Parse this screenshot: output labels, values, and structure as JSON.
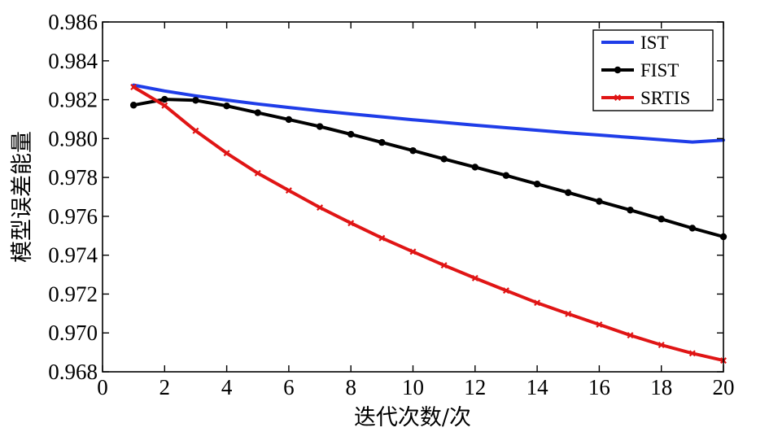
{
  "chart_data": {
    "type": "line",
    "xlabel": "迭代次数/次",
    "ylabel": "模型误差能量",
    "xlim": [
      0,
      20
    ],
    "ylim": [
      0.968,
      0.986
    ],
    "xticks": [
      0,
      2,
      4,
      6,
      8,
      10,
      12,
      14,
      16,
      18,
      20
    ],
    "yticks": [
      0.968,
      0.97,
      0.972,
      0.974,
      0.976,
      0.978,
      0.98,
      0.982,
      0.984,
      0.986
    ],
    "xtick_labels": [
      "0",
      "2",
      "4",
      "6",
      "8",
      "10",
      "12",
      "14",
      "16",
      "18",
      "20"
    ],
    "ytick_labels": [
      "0.968",
      "0.970",
      "0.972",
      "0.974",
      "0.976",
      "0.978",
      "0.980",
      "0.982",
      "0.984",
      "0.986"
    ],
    "grid": false,
    "legend_position": "top-right",
    "x": [
      1,
      2,
      3,
      4,
      5,
      6,
      7,
      8,
      9,
      10,
      11,
      12,
      13,
      14,
      15,
      16,
      17,
      18,
      19,
      20
    ],
    "series": [
      {
        "name": "IST",
        "color": "#1f3de8",
        "marker": "none",
        "values": [
          0.98275,
          0.98245,
          0.9822,
          0.98198,
          0.98178,
          0.9816,
          0.98143,
          0.98127,
          0.98112,
          0.98097,
          0.98083,
          0.98069,
          0.98056,
          0.98043,
          0.9803,
          0.98018,
          0.98006,
          0.97994,
          0.97982,
          0.97992
        ]
      },
      {
        "name": "FIST",
        "color": "#000000",
        "marker": "circle",
        "values": [
          0.98172,
          0.98202,
          0.98197,
          0.98168,
          0.98133,
          0.98098,
          0.98062,
          0.98022,
          0.9798,
          0.97938,
          0.97895,
          0.97853,
          0.9781,
          0.97766,
          0.97722,
          0.97677,
          0.97632,
          0.97586,
          0.97539,
          0.97495
        ]
      },
      {
        "name": "SRTIS",
        "color": "#e01515",
        "marker": "x",
        "values": [
          0.98265,
          0.9817,
          0.9804,
          0.97925,
          0.97822,
          0.97733,
          0.97645,
          0.97565,
          0.97488,
          0.97418,
          0.97348,
          0.97282,
          0.97218,
          0.97155,
          0.97098,
          0.97043,
          0.96988,
          0.96938,
          0.96895,
          0.96858
        ]
      }
    ]
  }
}
